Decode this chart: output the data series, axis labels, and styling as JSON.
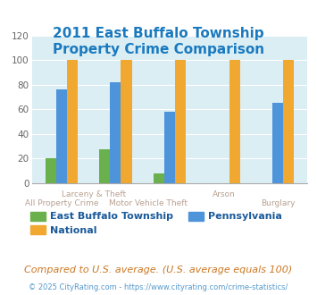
{
  "title": "2011 East Buffalo Township\nProperty Crime Comparison",
  "title_color": "#1a7abf",
  "categories": [
    "All Property Crime",
    "Larceny & Theft",
    "Motor Vehicle Theft",
    "Arson",
    "Burglary"
  ],
  "series": {
    "East Buffalo Township": [
      20,
      27,
      8,
      0,
      0
    ],
    "Pennsylvania": [
      76,
      82,
      58,
      0,
      65
    ],
    "National": [
      100,
      100,
      100,
      100,
      100
    ]
  },
  "colors": {
    "East Buffalo Township": "#6ab04c",
    "Pennsylvania": "#4d94db",
    "National": "#f0a830"
  },
  "ylim": [
    0,
    120
  ],
  "yticks": [
    0,
    20,
    40,
    60,
    80,
    100,
    120
  ],
  "plot_bg": "#dbeef4",
  "fig_bg": "#ffffff",
  "grid_color": "#ffffff",
  "xlabel_top_color": "#b8a090",
  "xlabel_bot_color": "#b8a090",
  "legend_text_color": "#1a5a9a",
  "footnote1": "Compared to U.S. average. (U.S. average equals 100)",
  "footnote2": "© 2025 CityRating.com - https://www.cityrating.com/crime-statistics/",
  "footnote1_color": "#cc7722",
  "footnote2_color": "#5599cc"
}
